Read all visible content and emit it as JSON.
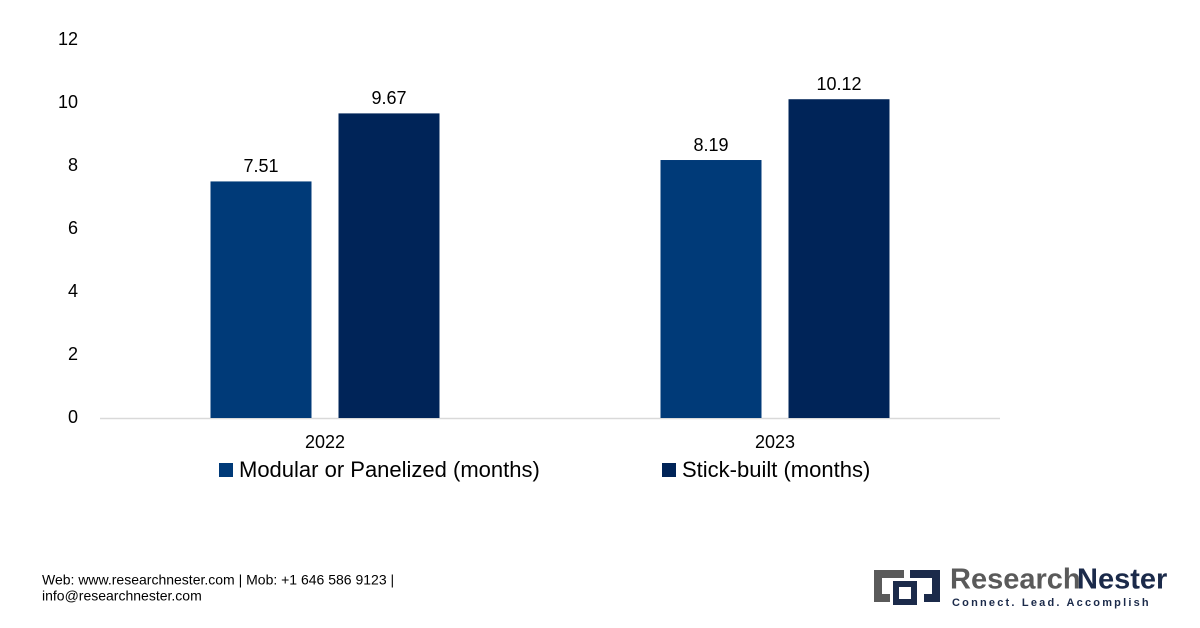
{
  "chart_data": {
    "type": "bar",
    "categories": [
      "2022",
      "2023"
    ],
    "series": [
      {
        "name": "Modular or Panelized (months)",
        "color": "#003a78",
        "values": [
          7.51,
          8.19
        ]
      },
      {
        "name": "Stick-built (months)",
        "color": "#002458",
        "values": [
          9.67,
          10.12
        ]
      }
    ],
    "ylim": [
      0,
      12
    ],
    "yticks": [
      0,
      2,
      4,
      6,
      8,
      10,
      12
    ],
    "grid": false,
    "legend": "bottom"
  },
  "footer": {
    "line1": "Web: www.researchnester.com | Mob: +1 646 586 9123 |",
    "line2": "info@researchnester.com"
  },
  "logo": {
    "word1": "Research",
    "word2": "Nester",
    "tagline": "Connect. Lead. Accomplish"
  }
}
